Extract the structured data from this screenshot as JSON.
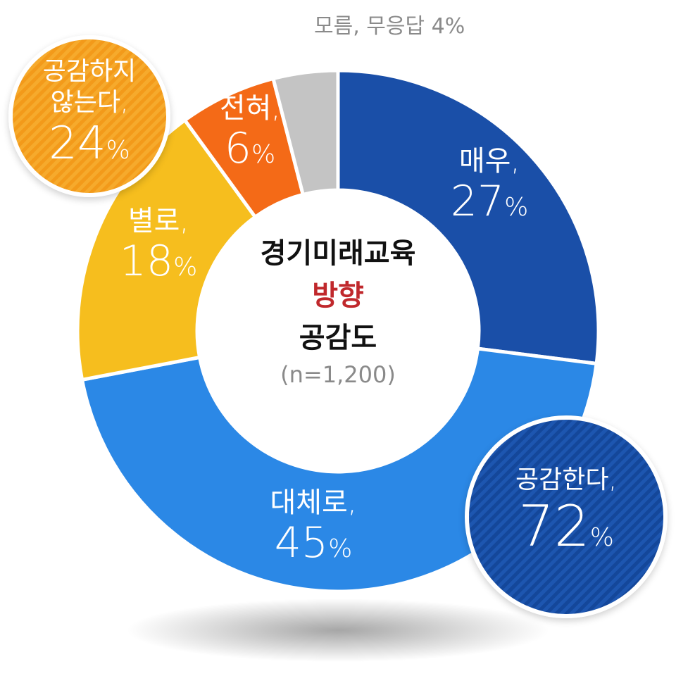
{
  "chart_data": {
    "type": "pie",
    "variant": "donut",
    "title": [
      "경기미래교육",
      "방향",
      "공감도"
    ],
    "sample": "(n=1,200)",
    "series": [
      {
        "label": "매우,",
        "value": 27,
        "color": "#1a4fa8"
      },
      {
        "label": "대체로,",
        "value": 45,
        "color": "#2b88e6"
      },
      {
        "label": "별로,",
        "value": 18,
        "color": "#f6be1e"
      },
      {
        "label": "전혀,",
        "value": 6,
        "color": "#f46a17"
      },
      {
        "label": "모름, 무응답",
        "value": 4,
        "color": "#c4c4c4"
      }
    ],
    "groups": [
      {
        "label": "공감한다,",
        "value": 72,
        "color": "#1a4fa8"
      },
      {
        "label": "공감하지\n않는다,",
        "value": 24,
        "color": "#f39a1a"
      }
    ]
  },
  "labels": {
    "very": {
      "name": "매우,",
      "value": "27",
      "unit": "%"
    },
    "mostly": {
      "name": "대체로,",
      "value": "45",
      "unit": "%"
    },
    "notmuch": {
      "name": "별로,",
      "value": "18",
      "unit": "%"
    },
    "notatall": {
      "name": "전혀,",
      "value": "6",
      "unit": "%"
    },
    "dontknow": {
      "text": "모름, 무응답 4%"
    }
  },
  "bubbles": {
    "agree": {
      "line1": "공감한다,",
      "value": "72",
      "unit": "%"
    },
    "disagree": {
      "line1": "공감하지",
      "line2": "않는다,",
      "value": "24",
      "unit": "%"
    }
  },
  "center": {
    "line1": "경기미래교육",
    "line2": "방향",
    "line3": "공감도",
    "sample": "(n=1,200)"
  }
}
